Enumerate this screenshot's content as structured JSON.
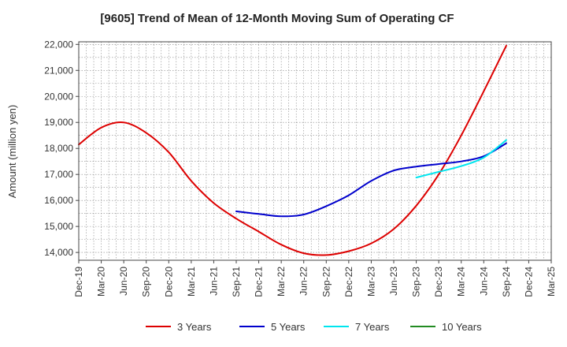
{
  "chart_data": {
    "type": "line",
    "title": "[9605]  Trend of Mean of 12-Month Moving Sum of Operating CF",
    "xlabel": "",
    "ylabel": "Amount (million yen)",
    "ylim": [
      13700,
      22100
    ],
    "yticks": [
      14000,
      15000,
      16000,
      17000,
      18000,
      19000,
      20000,
      21000,
      22000
    ],
    "ytick_labels": [
      "14,000",
      "15,000",
      "16,000",
      "17,000",
      "18,000",
      "19,000",
      "20,000",
      "21,000",
      "22,000"
    ],
    "categories": [
      "Dec-19",
      "Mar-20",
      "Jun-20",
      "Sep-20",
      "Dec-20",
      "Mar-21",
      "Jun-21",
      "Sep-21",
      "Dec-21",
      "Mar-22",
      "Jun-22",
      "Sep-22",
      "Dec-22",
      "Mar-23",
      "Jun-23",
      "Sep-23",
      "Dec-23",
      "Mar-24",
      "Jun-24",
      "Sep-24",
      "Dec-24",
      "Mar-25"
    ],
    "grid": true,
    "legend_position": "bottom",
    "series": [
      {
        "name": "3 Years",
        "color": "#dd0000",
        "values": [
          18150,
          18800,
          19000,
          18600,
          17850,
          16750,
          15900,
          15300,
          14800,
          14300,
          13970,
          13900,
          14050,
          14350,
          14900,
          15800,
          17000,
          18500,
          20200,
          21950,
          null,
          null
        ]
      },
      {
        "name": "5 Years",
        "color": "#0000cc",
        "values": [
          null,
          null,
          null,
          null,
          null,
          null,
          null,
          15580,
          15480,
          15390,
          15460,
          15780,
          16200,
          16750,
          17150,
          17300,
          17400,
          17500,
          17700,
          18200,
          null,
          null
        ]
      },
      {
        "name": "7 Years",
        "color": "#00e5ee",
        "values": [
          null,
          null,
          null,
          null,
          null,
          null,
          null,
          null,
          null,
          null,
          null,
          null,
          null,
          null,
          null,
          16880,
          17100,
          17320,
          17650,
          18320,
          null,
          null
        ]
      },
      {
        "name": "10 Years",
        "color": "#228b22",
        "values": [
          null,
          null,
          null,
          null,
          null,
          null,
          null,
          null,
          null,
          null,
          null,
          null,
          null,
          null,
          null,
          null,
          null,
          null,
          null,
          null,
          null,
          null
        ]
      }
    ]
  }
}
